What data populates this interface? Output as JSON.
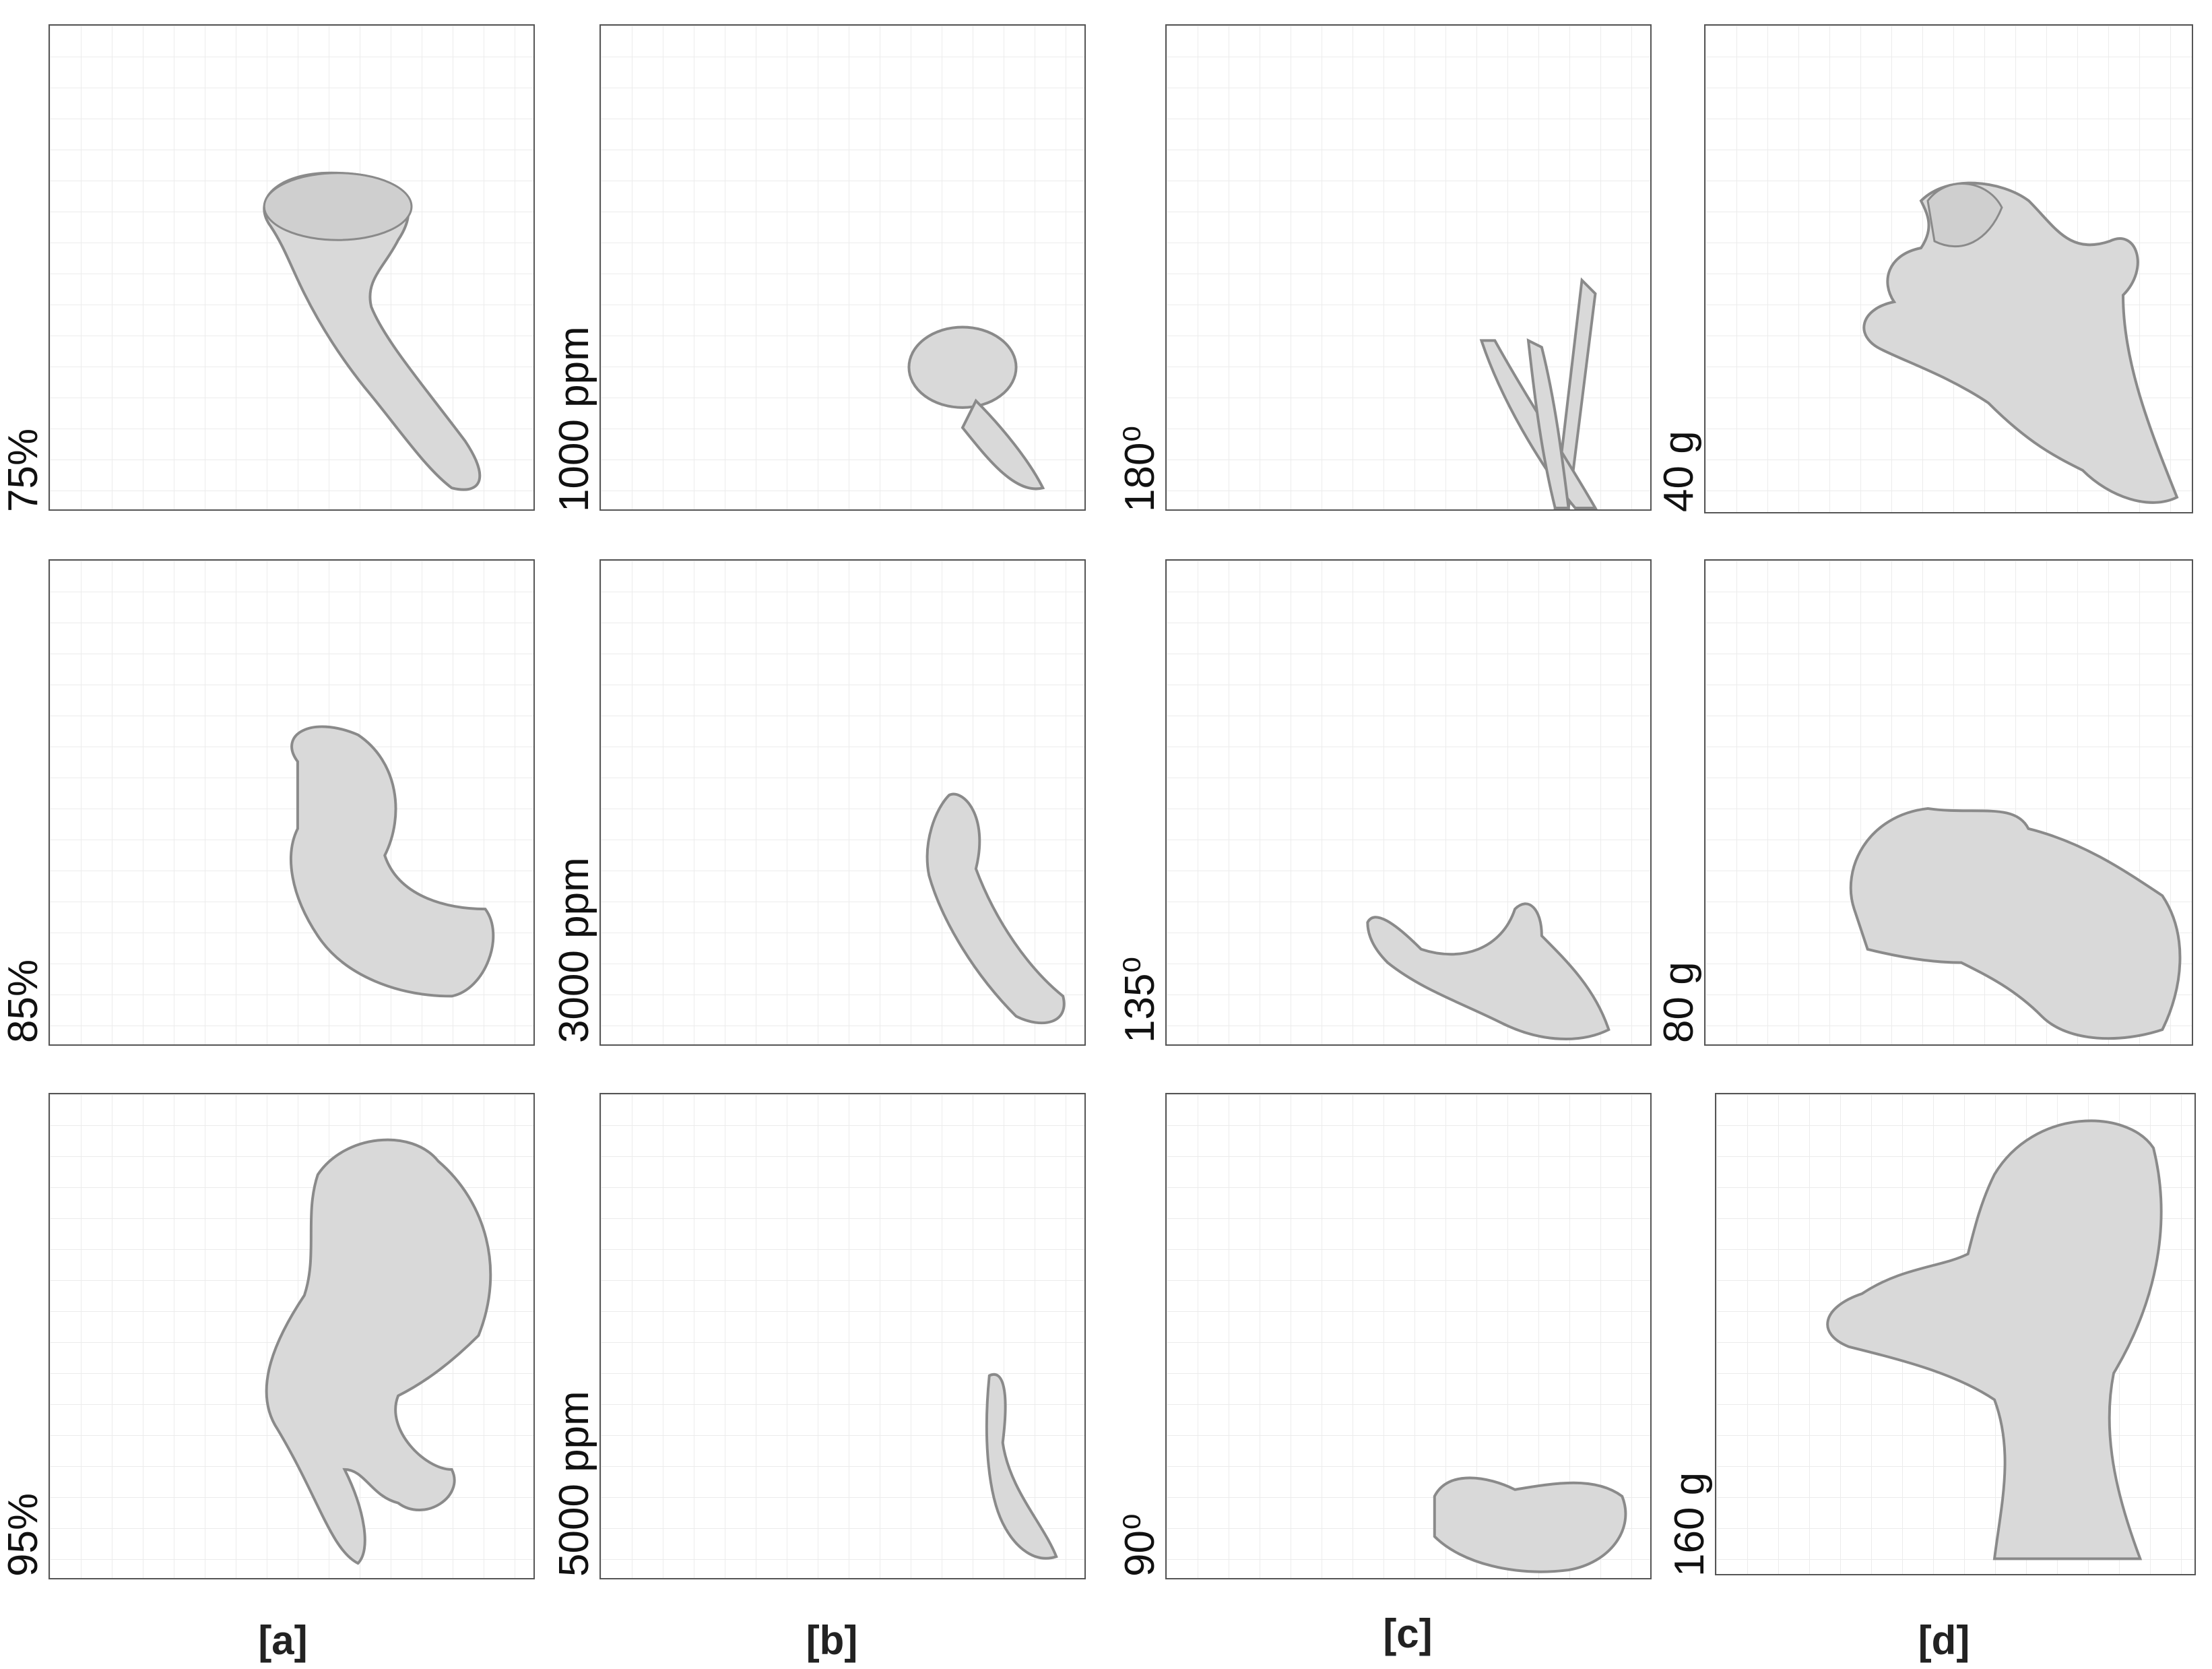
{
  "columns": [
    {
      "label": "[a]",
      "rows": [
        "75%",
        "85%",
        "95%"
      ]
    },
    {
      "label": "[b]",
      "rows": [
        "1000 ppm",
        "3000 ppm",
        "5000 ppm"
      ]
    },
    {
      "label": "[c]",
      "rows": [
        "180⁰",
        "135⁰",
        "90⁰"
      ]
    },
    {
      "label": "[d]",
      "rows": [
        "40 g",
        "80 g",
        "160 g"
      ]
    }
  ],
  "colors": {
    "panel_border": "#555555",
    "grid": "#ececec",
    "specimen": "#d9d9d9",
    "specimen_edge": "#8a8a8a"
  }
}
